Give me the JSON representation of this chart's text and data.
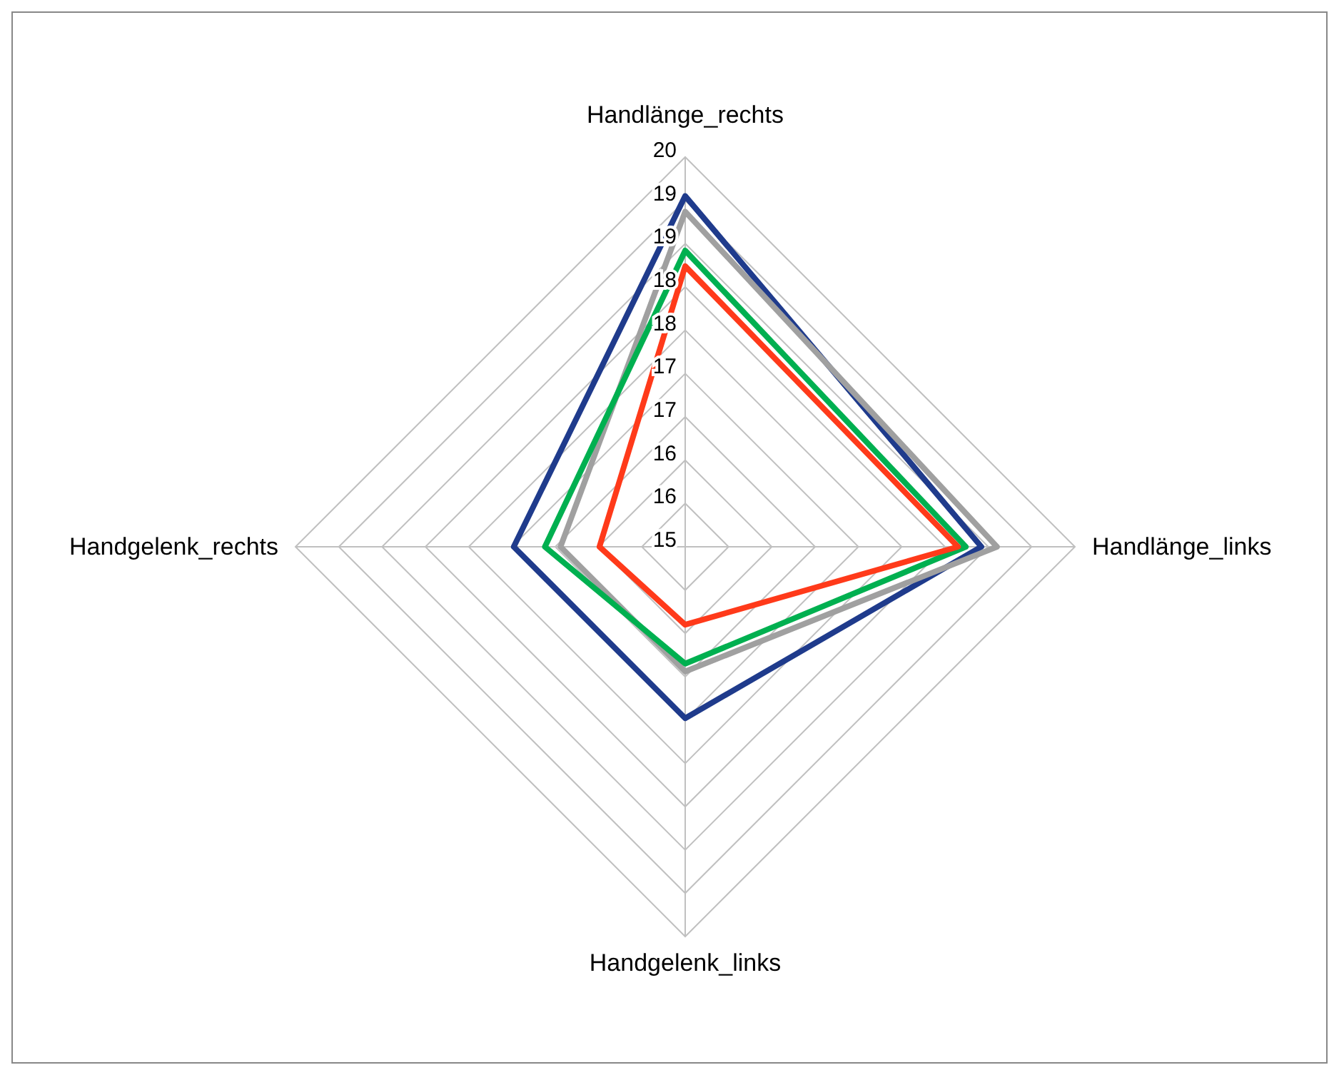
{
  "chart_data": {
    "type": "radar",
    "categories": [
      "Handlänge_rechts",
      "Handlänge_links",
      "Handgelenk_links",
      "Handgelenk_rechts"
    ],
    "ylim": [
      15,
      20
    ],
    "yticks": [
      15,
      {
        "value": 15.556,
        "label": "16"
      },
      {
        "value": 16.111,
        "label": "16"
      },
      {
        "value": 16.667,
        "label": "17"
      },
      {
        "value": 17.222,
        "label": "17"
      },
      {
        "value": 17.778,
        "label": "18"
      },
      {
        "value": 18.333,
        "label": "18"
      },
      {
        "value": 18.889,
        "label": "19"
      },
      {
        "value": 19.444,
        "label": "19"
      },
      20
    ],
    "grid": true,
    "series": [
      {
        "color": "#1f3b8c",
        "values": [
          19.5,
          18.8,
          17.2,
          17.2
        ]
      },
      {
        "color": "#a0a0a0",
        "values": [
          19.3,
          19.0,
          16.6,
          16.6
        ]
      },
      {
        "color": "#00b050",
        "values": [
          18.8,
          18.6,
          16.5,
          16.8
        ]
      },
      {
        "color": "#ff3a1a",
        "values": [
          18.6,
          18.5,
          16.0,
          16.1
        ]
      }
    ]
  }
}
